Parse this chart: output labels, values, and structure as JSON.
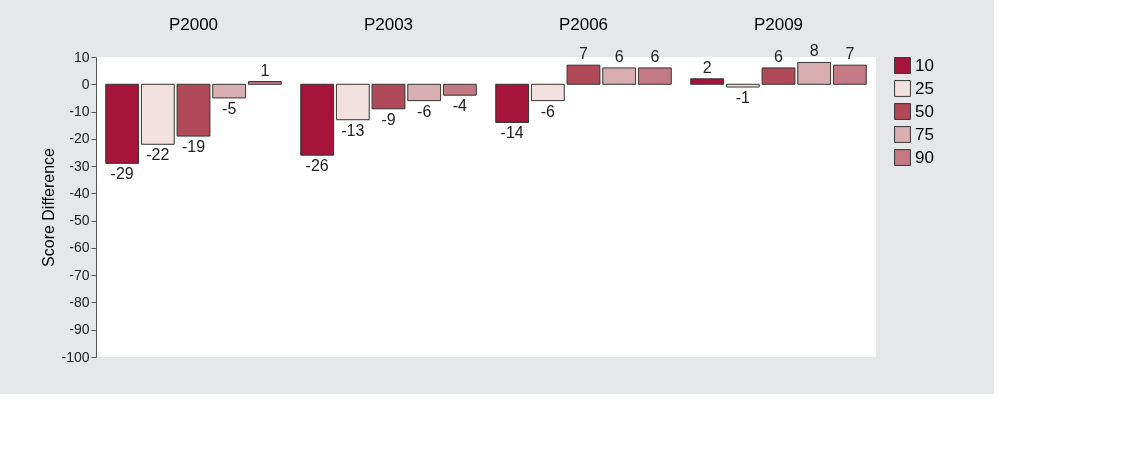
{
  "chart_data": {
    "type": "bar",
    "ylabel": "Score Difference",
    "categories": [
      "P2000",
      "P2003",
      "P2006",
      "P2009"
    ],
    "series": [
      {
        "name": "10",
        "color": "#a6133b",
        "values": [
          -29,
          -26,
          -14,
          2
        ]
      },
      {
        "name": "25",
        "color": "#f3e1e1",
        "values": [
          -22,
          -13,
          -6,
          -1
        ]
      },
      {
        "name": "50",
        "color": "#b04958",
        "values": [
          -19,
          -9,
          7,
          6
        ]
      },
      {
        "name": "75",
        "color": "#d9aeb3",
        "values": [
          -5,
          -6,
          6,
          8
        ]
      },
      {
        "name": "90",
        "color": "#c47a84",
        "values": [
          1,
          -4,
          6,
          7
        ]
      }
    ],
    "ylim": [
      -100,
      10
    ],
    "yticks": [
      -100,
      -90,
      -80,
      -70,
      -60,
      -50,
      -40,
      -30,
      -20,
      -10,
      0,
      10
    ],
    "data_labels": true,
    "grid": false,
    "legend": "right"
  }
}
